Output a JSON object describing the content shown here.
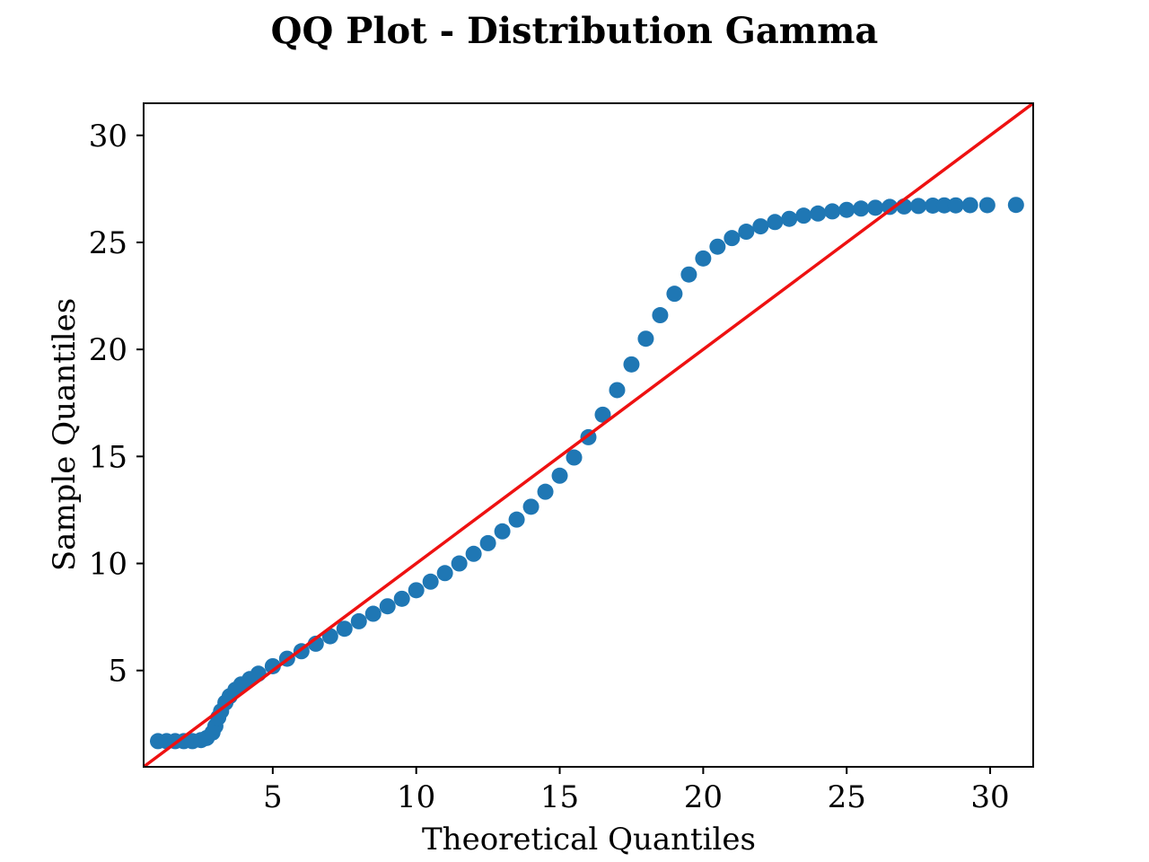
{
  "chart_data": {
    "type": "scatter",
    "title": "QQ Plot - Distribution Gamma",
    "xlabel": "Theoretical Quantiles",
    "ylabel": "Sample Quantiles",
    "xlim": [
      0.5,
      31.5
    ],
    "ylim": [
      0.5,
      31.5
    ],
    "xticks": [
      5,
      10,
      15,
      20,
      25,
      30
    ],
    "yticks": [
      5,
      10,
      15,
      20,
      25,
      30
    ],
    "grid": false,
    "series": [
      {
        "kind": "points",
        "color": "#1f77b4",
        "points": [
          [
            1.0,
            1.7
          ],
          [
            1.3,
            1.7
          ],
          [
            1.6,
            1.7
          ],
          [
            1.9,
            1.7
          ],
          [
            2.2,
            1.7
          ],
          [
            2.5,
            1.75
          ],
          [
            2.7,
            1.85
          ],
          [
            2.9,
            2.1
          ],
          [
            3.0,
            2.4
          ],
          [
            3.1,
            2.8
          ],
          [
            3.2,
            3.1
          ],
          [
            3.35,
            3.5
          ],
          [
            3.5,
            3.8
          ],
          [
            3.7,
            4.1
          ],
          [
            3.9,
            4.35
          ],
          [
            4.2,
            4.6
          ],
          [
            4.5,
            4.85
          ],
          [
            5.0,
            5.2
          ],
          [
            5.5,
            5.55
          ],
          [
            6.0,
            5.9
          ],
          [
            6.5,
            6.25
          ],
          [
            7.0,
            6.6
          ],
          [
            7.5,
            6.95
          ],
          [
            8.0,
            7.3
          ],
          [
            8.5,
            7.65
          ],
          [
            9.0,
            8.0
          ],
          [
            9.5,
            8.35
          ],
          [
            10.0,
            8.75
          ],
          [
            10.5,
            9.15
          ],
          [
            11.0,
            9.55
          ],
          [
            11.5,
            10.0
          ],
          [
            12.0,
            10.45
          ],
          [
            12.5,
            10.95
          ],
          [
            13.0,
            11.5
          ],
          [
            13.5,
            12.05
          ],
          [
            14.0,
            12.65
          ],
          [
            14.5,
            13.35
          ],
          [
            15.0,
            14.1
          ],
          [
            15.5,
            14.95
          ],
          [
            16.0,
            15.9
          ],
          [
            16.5,
            16.95
          ],
          [
            17.0,
            18.1
          ],
          [
            17.5,
            19.3
          ],
          [
            18.0,
            20.5
          ],
          [
            18.5,
            21.6
          ],
          [
            19.0,
            22.6
          ],
          [
            19.5,
            23.5
          ],
          [
            20.0,
            24.25
          ],
          [
            20.5,
            24.8
          ],
          [
            21.0,
            25.2
          ],
          [
            21.5,
            25.5
          ],
          [
            22.0,
            25.75
          ],
          [
            22.5,
            25.95
          ],
          [
            23.0,
            26.1
          ],
          [
            23.5,
            26.25
          ],
          [
            24.0,
            26.35
          ],
          [
            24.5,
            26.45
          ],
          [
            25.0,
            26.52
          ],
          [
            25.5,
            26.58
          ],
          [
            26.0,
            26.62
          ],
          [
            26.5,
            26.66
          ],
          [
            27.0,
            26.68
          ],
          [
            27.5,
            26.7
          ],
          [
            28.0,
            26.72
          ],
          [
            28.4,
            26.73
          ],
          [
            28.8,
            26.73
          ],
          [
            29.3,
            26.74
          ],
          [
            29.9,
            26.74
          ],
          [
            30.9,
            26.75
          ]
        ]
      },
      {
        "kind": "reference-line",
        "color": "#ee1111",
        "points": [
          [
            0.5,
            0.5
          ],
          [
            31.5,
            31.5
          ]
        ]
      }
    ]
  }
}
